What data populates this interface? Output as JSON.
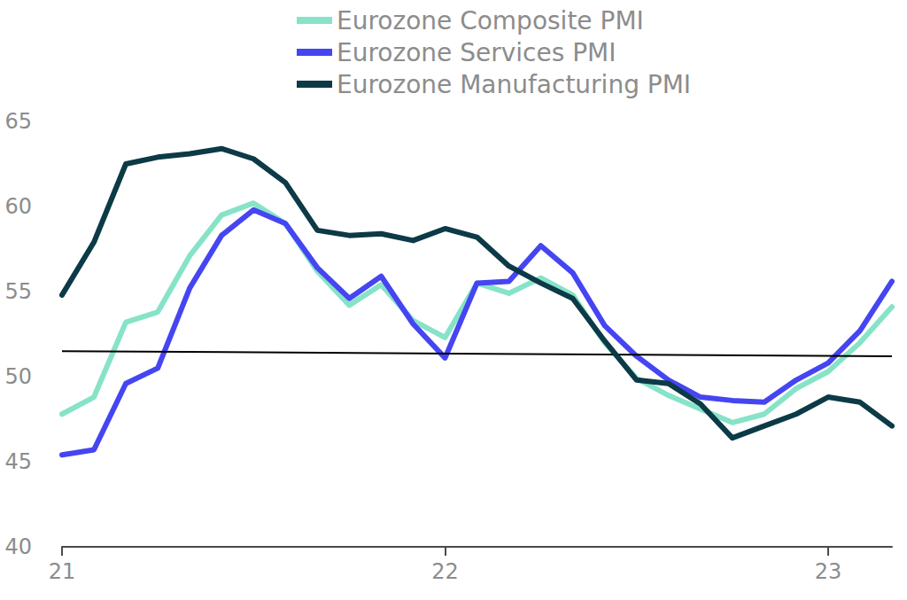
{
  "chart_data": {
    "type": "line",
    "categories": [
      "21",
      null,
      null,
      null,
      null,
      null,
      null,
      null,
      null,
      null,
      null,
      null,
      "22",
      null,
      null,
      null,
      null,
      null,
      null,
      null,
      null,
      null,
      null,
      null,
      "23",
      null,
      null
    ],
    "series": [
      {
        "name": "Eurozone Composite PMI",
        "color": "#86e3c8",
        "values": [
          47.8,
          48.8,
          53.2,
          53.8,
          57.1,
          59.5,
          60.2,
          59.0,
          56.2,
          54.2,
          55.4,
          53.3,
          52.3,
          55.5,
          54.9,
          55.8,
          54.8,
          52.0,
          49.9,
          48.9,
          48.1,
          47.3,
          47.8,
          49.3,
          50.3,
          52.0,
          54.1
        ]
      },
      {
        "name": "Eurozone Services PMI",
        "color": "#4545f2",
        "values": [
          45.4,
          45.7,
          49.6,
          50.5,
          55.2,
          58.3,
          59.8,
          59.0,
          56.4,
          54.6,
          55.9,
          53.1,
          51.1,
          55.5,
          55.6,
          57.7,
          56.1,
          53.0,
          51.2,
          49.8,
          48.8,
          48.6,
          48.5,
          49.8,
          50.8,
          52.7,
          55.6
        ]
      },
      {
        "name": "Eurozone Manufacturing PMI",
        "color": "#0c3a46",
        "values": [
          54.8,
          57.9,
          62.5,
          62.9,
          63.1,
          63.4,
          62.8,
          61.4,
          58.6,
          58.3,
          58.4,
          58.0,
          58.7,
          58.2,
          56.5,
          55.5,
          54.6,
          52.1,
          49.8,
          49.6,
          48.4,
          46.4,
          47.1,
          47.8,
          48.8,
          48.5,
          47.1
        ]
      }
    ],
    "reference_line": {
      "start": 51.5,
      "end": 51.2
    },
    "ylim": [
      40,
      65
    ],
    "yticks": [
      40,
      45,
      50,
      55,
      60,
      65
    ],
    "grid": false,
    "legend": "top"
  }
}
